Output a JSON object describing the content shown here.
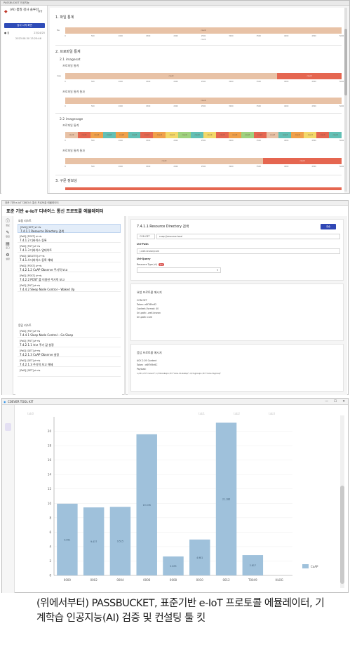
{
  "passbucket": {
    "window_title": "PASSBUCKET 인공지능",
    "sidebar": {
      "title": "(AI) 품질 검사 솔루션",
      "badge": "설정",
      "start_button": "검사 시작 화면",
      "row_label": "● 검",
      "row_value": "23/24/25",
      "date": "2023.08.30 13:25:46"
    },
    "sections": {
      "s1": "1. 파일 통계",
      "s2": "2. 프로파일 통계",
      "s21": "2.1 imagesat",
      "s22": "2.2 imagesage",
      "s3": "3. 구문 정보상"
    },
    "labels": {
      "profile_stats": "프로파일 통계",
      "profile_stats_combined": "프로파일 통계 통과"
    },
    "y_labels": {
      "file": "file",
      "rows": "rows"
    },
    "x_ticks": [
      "0",
      "500",
      "1000",
      "1500",
      "2000",
      "2500",
      "3000",
      "3500",
      "4000",
      "4500",
      "5000"
    ],
    "x_axis_title": "count",
    "colors": {
      "tan": "#e8c2a6",
      "red": "#e56650",
      "orange": "#f0a04a",
      "teal": "#62c0b5",
      "yellow": "#f3d86a",
      "green": "#9fd27f"
    }
  },
  "eiot": {
    "window_title": "표준 기반 e-IoT 디바이스 통신 프로토콜 에뮬레이터",
    "app_title": "표준 기반 e-IoT 디바이스 통신 프로토콜 에뮬레이터",
    "rail": [
      {
        "glyph": "ⓘ",
        "label": "정보"
      },
      {
        "glyph": "✎",
        "label": "편집"
      },
      {
        "glyph": "▤",
        "label": "로그"
      },
      {
        "glyph": "⚙",
        "label": "설정"
      }
    ],
    "request_list": {
      "title": "요청 리스트",
      "items": [
        {
          "method": "[PoD] [GET] ⇄→⇆",
          "name": "7.4.1.1 Resource Directory 검색"
        },
        {
          "method": "[PoD] [POST] ⇄→⇆",
          "name": "7.4.1.2 디바이스 등록"
        },
        {
          "method": "[PoD] [PUT] ⇄→⇆",
          "name": "7.4.1.3 디바이스 업데이트"
        },
        {
          "method": "[PoD] [DELETE] ⇄→⇆",
          "name": "7.4.1.4 디바이스 등록 해제"
        },
        {
          "method": "[PoD] [POST] ⇄→⇆",
          "name": "7.4.2.1.2 CoAP Observe 주기적 보고"
        },
        {
          "method": "[PoD] [POST] ⇄→⇆",
          "name": "7.4.2.2 POST 를 이용한 주기적 보고"
        },
        {
          "method": "[PoD] [PUT] ⇄→⇆",
          "name": "7.4.4.2 Sleep Node Control – Waked Up"
        }
      ]
    },
    "response_list": {
      "title": "응답 리스트",
      "items": [
        {
          "method": "[PoD] [PUT] ⇄→⇆",
          "name": "7.4.4.1 Sleep Node Control – Go Sleep"
        },
        {
          "method": "[PoD] [PUT] ⇄→⇆",
          "name": "7.4.2.1.1 보고 주기 값 설정"
        },
        {
          "method": "[PoD] [GET] ⇄→⇆",
          "name": "7.4.2.1.3 CoAP Observe 설정"
        },
        {
          "method": "[PoD] [GET] ⇄→⇆",
          "name": "7.4.2.1.3 주기적 보고 해제"
        },
        {
          "method": "[PoD] [GET] ⇄→⇆",
          "name": ""
        }
      ]
    },
    "detail": {
      "title": "7.4.1.1 Resource Directory 검색",
      "send_button": "전송",
      "method_field": "CON GET",
      "uri_field": "coap://resource.local",
      "uri_path_label": "Uri-Path",
      "uri_path_value": "/.well-known/core",
      "uri_query_label": "Uri-Query",
      "resource_type_label": "Resource Type (rt)",
      "required_badge": "필수",
      "request_title": "요청 프로토콜 메시지",
      "request_lines": [
        "CON GET",
        "Token: e8f769c62",
        "Content-Format: 40",
        "Uri-path: .well-known",
        "Uri-path: core"
      ],
      "response_title": "응답 프로토콜 메시지",
      "response_lines": [
        "ACK 2.05 Content",
        "Token : e8f769c6C",
        "Payload:",
        "</rd>;rt=\"core.rd\",</rd-lookup>;rt=\"core.rd-lookup\",</rd-group>;rt=\"core.rd-group\""
      ]
    }
  },
  "coever": {
    "window_title": "COEVER TOOL KIT",
    "logo": "◉",
    "controls": [
      "—",
      "☐",
      "✕"
    ],
    "ghost_tabs": [
      "tab0",
      "tab1",
      "tab2",
      "tab3"
    ],
    "chart_data": {
      "type": "bar",
      "categories": [
        "0000",
        "0002",
        "0004",
        "0006",
        "0008",
        "0010",
        "0012",
        "T0049",
        "HLOG"
      ],
      "series": [
        {
          "name": "CoAP",
          "values": [
            9.951,
            9.437,
            9.515,
            19.578,
            2.633,
            4.981,
            21.186,
            2.817,
            0
          ]
        }
      ],
      "data_labels": [
        "9.951",
        "9.437",
        "9.515",
        "19.578",
        "2.633",
        "4.981",
        "21.186",
        "2.817",
        ""
      ],
      "y_ticks": [
        0,
        2,
        4,
        6,
        8,
        10,
        12,
        14,
        16,
        18,
        20
      ],
      "ylim": [
        0,
        22
      ],
      "legend_position": "bottom-right",
      "bar_color": "#9fc1db"
    }
  },
  "caption": "(위에서부터) PASSBUCKET, 표준기반 e-IoT 프로토콜 에뮬레이터, 기계학습 인공지능(AI) 검증 및 컨설팅 툴 킷"
}
